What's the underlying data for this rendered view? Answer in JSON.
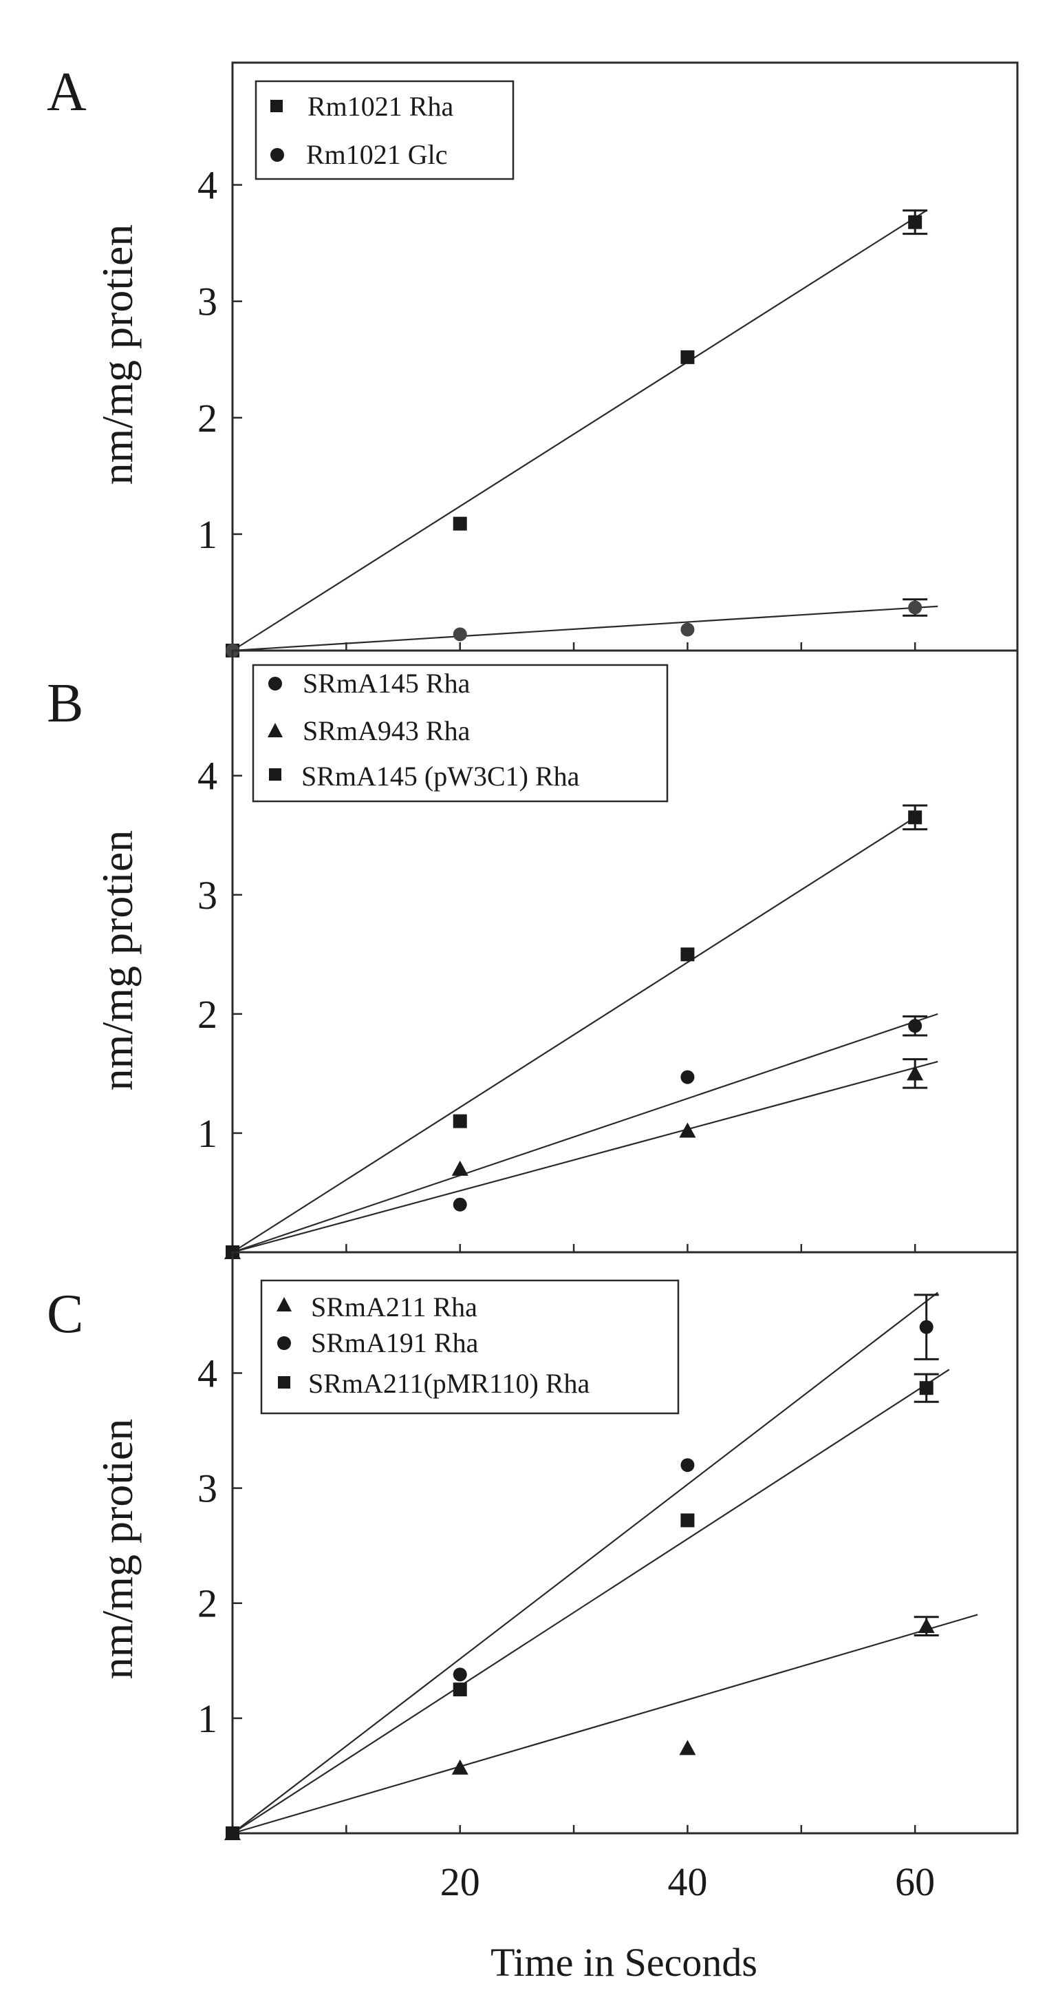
{
  "chart_data": [
    {
      "type": "scatter",
      "panel": "A",
      "title": "",
      "xlabel": "",
      "ylabel": "nm/mg protien",
      "xlim": [
        0,
        69
      ],
      "ylim": [
        0,
        5.05
      ],
      "yticks": [
        1,
        2,
        3,
        4
      ],
      "xticks": [],
      "series": [
        {
          "name": "Rm1021 Rha",
          "marker": "square",
          "color": "#1a1a1a",
          "x": [
            0,
            20,
            40,
            60
          ],
          "y": [
            0,
            1.09,
            2.52,
            3.68
          ],
          "err": [
            0,
            0,
            0,
            0.1
          ],
          "fit": [
            [
              0,
              0
            ],
            [
              61,
              3.78
            ]
          ]
        },
        {
          "name": "Rm1021 Glc",
          "marker": "circle",
          "color": "#444444",
          "x": [
            0,
            20,
            40,
            60
          ],
          "y": [
            0,
            0.14,
            0.18,
            0.37
          ],
          "err": [
            0,
            0,
            0,
            0.07
          ],
          "fit": [
            [
              0,
              0
            ],
            [
              62,
              0.38
            ]
          ]
        }
      ]
    },
    {
      "type": "scatter",
      "panel": "B",
      "title": "",
      "xlabel": "",
      "ylabel": "nm/mg protien",
      "xlim": [
        0,
        69
      ],
      "ylim": [
        0,
        5.05
      ],
      "yticks": [
        1,
        2,
        3,
        4
      ],
      "xticks": [],
      "series": [
        {
          "name": "SRmA145 Rha",
          "marker": "circle",
          "color": "#1a1a1a",
          "x": [
            0,
            20,
            40,
            60
          ],
          "y": [
            0,
            0.4,
            1.47,
            1.9
          ],
          "err": [
            0,
            0,
            0,
            0.08
          ],
          "fit": [
            [
              0,
              0
            ],
            [
              62,
              2.0
            ]
          ]
        },
        {
          "name": "SRmA943 Rha",
          "marker": "triangle",
          "color": "#1a1a1a",
          "x": [
            0,
            20,
            40,
            60
          ],
          "y": [
            0,
            0.7,
            1.02,
            1.5
          ],
          "err": [
            0,
            0,
            0,
            0.12
          ],
          "fit": [
            [
              0,
              0
            ],
            [
              62,
              1.6
            ]
          ]
        },
        {
          "name": "SRmA145 (pW3C1) Rha",
          "marker": "square",
          "color": "#1a1a1a",
          "x": [
            0,
            20,
            40,
            60
          ],
          "y": [
            0,
            1.1,
            2.5,
            3.65
          ],
          "err": [
            0,
            0,
            0,
            0.1
          ],
          "fit": [
            [
              0,
              0
            ],
            [
              60,
              3.65
            ]
          ]
        }
      ]
    },
    {
      "type": "scatter",
      "panel": "C",
      "title": "",
      "xlabel": "Time in Seconds",
      "ylabel": "nm/mg protien",
      "xlim": [
        0,
        69
      ],
      "ylim": [
        0,
        5.05
      ],
      "yticks": [
        1,
        2,
        3,
        4
      ],
      "xticks": [
        20,
        40,
        60
      ],
      "series": [
        {
          "name": "SRmA211 Rha",
          "marker": "triangle",
          "color": "#1a1a1a",
          "x": [
            0,
            20,
            40,
            61
          ],
          "y": [
            0,
            0.57,
            0.74,
            1.8
          ],
          "err": [
            0,
            0,
            0,
            0.08
          ],
          "fit": [
            [
              0,
              0
            ],
            [
              65.5,
              1.9
            ]
          ]
        },
        {
          "name": "SRmA191 Rha",
          "marker": "circle",
          "color": "#1a1a1a",
          "x": [
            0,
            20,
            40,
            61
          ],
          "y": [
            0,
            1.38,
            3.2,
            4.4
          ],
          "err": [
            0,
            0,
            0,
            0.28
          ],
          "fit": [
            [
              0,
              0
            ],
            [
              62,
              4.7
            ]
          ]
        },
        {
          "name": "SRmA211(pMR110) Rha",
          "marker": "square",
          "color": "#1a1a1a",
          "x": [
            0,
            20,
            40,
            61
          ],
          "y": [
            0,
            1.25,
            2.72,
            3.87
          ],
          "err": [
            0,
            0,
            0,
            0.12
          ],
          "fit": [
            [
              0,
              0
            ],
            [
              63,
              4.03
            ]
          ]
        }
      ]
    }
  ]
}
